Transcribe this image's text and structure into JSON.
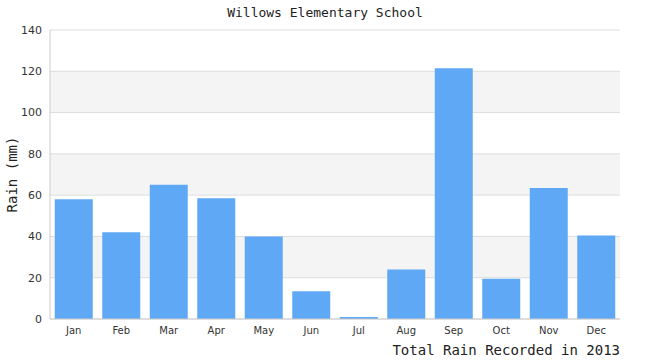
{
  "chart_data": {
    "type": "bar",
    "title": "Willows Elementary School",
    "y_label": "Rain (mm)",
    "x_label": "Total Rain Recorded in 2013",
    "categories": [
      "Jan",
      "Feb",
      "Mar",
      "Apr",
      "May",
      "Jun",
      "Jul",
      "Aug",
      "Sep",
      "Oct",
      "Nov",
      "Dec"
    ],
    "values": [
      58,
      42,
      65,
      58.5,
      40,
      13.5,
      1,
      24,
      121.5,
      19.5,
      63.5,
      40.5
    ],
    "color": "#5fa8f5",
    "ylim": [
      0,
      140
    ],
    "yticks": [
      0,
      20,
      40,
      60,
      80,
      100,
      120,
      140
    ],
    "grid": true
  }
}
